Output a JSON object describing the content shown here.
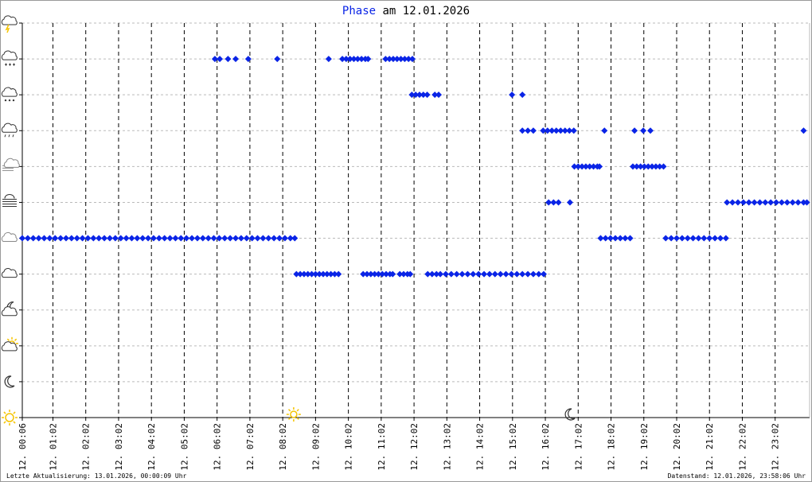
{
  "chart_data": {
    "type": "scatter",
    "title_highlight": "Phase",
    "title_rest": "am 12.01.2026",
    "footer_left": "Letzte Aktualisierung: 13.01.2026, 00:00:09 Uhr",
    "footer_right": "Datenstand: 12.01.2026, 23:58:06 Uhr",
    "color": "#0a24e6",
    "xlim": [
      6,
      1445
    ],
    "ylim": [
      0,
      11
    ],
    "yticks": [
      0,
      1,
      2,
      3,
      4,
      5,
      6,
      7,
      8,
      9,
      10,
      11
    ],
    "xticks": [
      {
        "value": 6,
        "label": "12. 00:06"
      },
      {
        "value": 62,
        "label": "12. 01:02"
      },
      {
        "value": 122,
        "label": "12. 02:02"
      },
      {
        "value": 182,
        "label": "12. 03:02"
      },
      {
        "value": 242,
        "label": "12. 04:02"
      },
      {
        "value": 302,
        "label": "12. 05:02"
      },
      {
        "value": 362,
        "label": "12. 06:02"
      },
      {
        "value": 422,
        "label": "12. 07:02"
      },
      {
        "value": 482,
        "label": "12. 08:02"
      },
      {
        "value": 542,
        "label": "12. 09:02"
      },
      {
        "value": 602,
        "label": "12. 10:02"
      },
      {
        "value": 662,
        "label": "12. 11:02"
      },
      {
        "value": 722,
        "label": "12. 12:02"
      },
      {
        "value": 782,
        "label": "12. 13:02"
      },
      {
        "value": 842,
        "label": "12. 14:02"
      },
      {
        "value": 902,
        "label": "12. 15:02"
      },
      {
        "value": 962,
        "label": "12. 16:02"
      },
      {
        "value": 1022,
        "label": "12. 17:02"
      },
      {
        "value": 1082,
        "label": "12. 18:02"
      },
      {
        "value": 1142,
        "label": "12. 19:02"
      },
      {
        "value": 1202,
        "label": "12. 20:02"
      },
      {
        "value": 1262,
        "label": "12. 21:02"
      },
      {
        "value": 1322,
        "label": "12. 22:02"
      },
      {
        "value": 1382,
        "label": "12. 23:02"
      }
    ],
    "sunrise": 502,
    "sunset": 1007,
    "series": [
      {
        "y": 5,
        "x": [
          6,
          16,
          26,
          36,
          46,
          56,
          66,
          76,
          86,
          96,
          106,
          116,
          126,
          136,
          146,
          156,
          166,
          176,
          186,
          196,
          206,
          216,
          226,
          236,
          246,
          256,
          266,
          276,
          286,
          296,
          306,
          316,
          326,
          336,
          346,
          356,
          366,
          376,
          386,
          396,
          406,
          416,
          426,
          436,
          446,
          456,
          466,
          476,
          486,
          496,
          504
        ]
      },
      {
        "y": 10,
        "x": [
          358,
          367,
          382,
          396,
          419,
          472
        ]
      },
      {
        "y": 10,
        "x": [
          566,
          591,
          598,
          605,
          612,
          619,
          626,
          633,
          638,
          670,
          677,
          684,
          691,
          698,
          705,
          712,
          719
        ]
      },
      {
        "y": 4,
        "x": [
          507,
          514,
          521,
          528,
          535,
          542,
          549,
          556,
          563,
          570,
          577,
          584,
          629,
          636,
          643,
          650,
          657,
          664,
          671,
          678,
          683,
          696,
          703,
          710,
          715,
          747,
          755,
          763,
          770,
          780,
          790,
          800,
          810,
          820,
          830,
          840,
          850,
          860,
          870,
          880,
          890,
          900,
          910,
          920,
          930,
          940,
          950,
          959
        ]
      },
      {
        "y": 9,
        "x": [
          718,
          725,
          732,
          739,
          746,
          760,
          767,
          901,
          920
        ]
      },
      {
        "y": 8,
        "x": [
          920,
          930,
          940,
          958,
          966,
          974,
          982,
          990,
          998,
          1006,
          1014,
          1070,
          1125,
          1141,
          1154,
          1434
        ]
      },
      {
        "y": 7,
        "x": [
          1015,
          1022,
          1029,
          1036,
          1043,
          1050,
          1057,
          1061,
          1122,
          1129,
          1136,
          1143,
          1150,
          1157,
          1164,
          1171,
          1178
        ]
      },
      {
        "y": 6,
        "x": [
          968,
          977,
          986,
          1007,
          1294,
          1304,
          1314,
          1324,
          1334,
          1344,
          1354,
          1364,
          1374,
          1384,
          1394,
          1404,
          1414,
          1424,
          1434,
          1440
        ]
      },
      {
        "y": 5,
        "x": [
          1063,
          1072,
          1081,
          1090,
          1099,
          1108,
          1117,
          1182,
          1192,
          1202,
          1212,
          1222,
          1232,
          1242,
          1252,
          1262,
          1272,
          1282,
          1292
        ]
      }
    ]
  }
}
